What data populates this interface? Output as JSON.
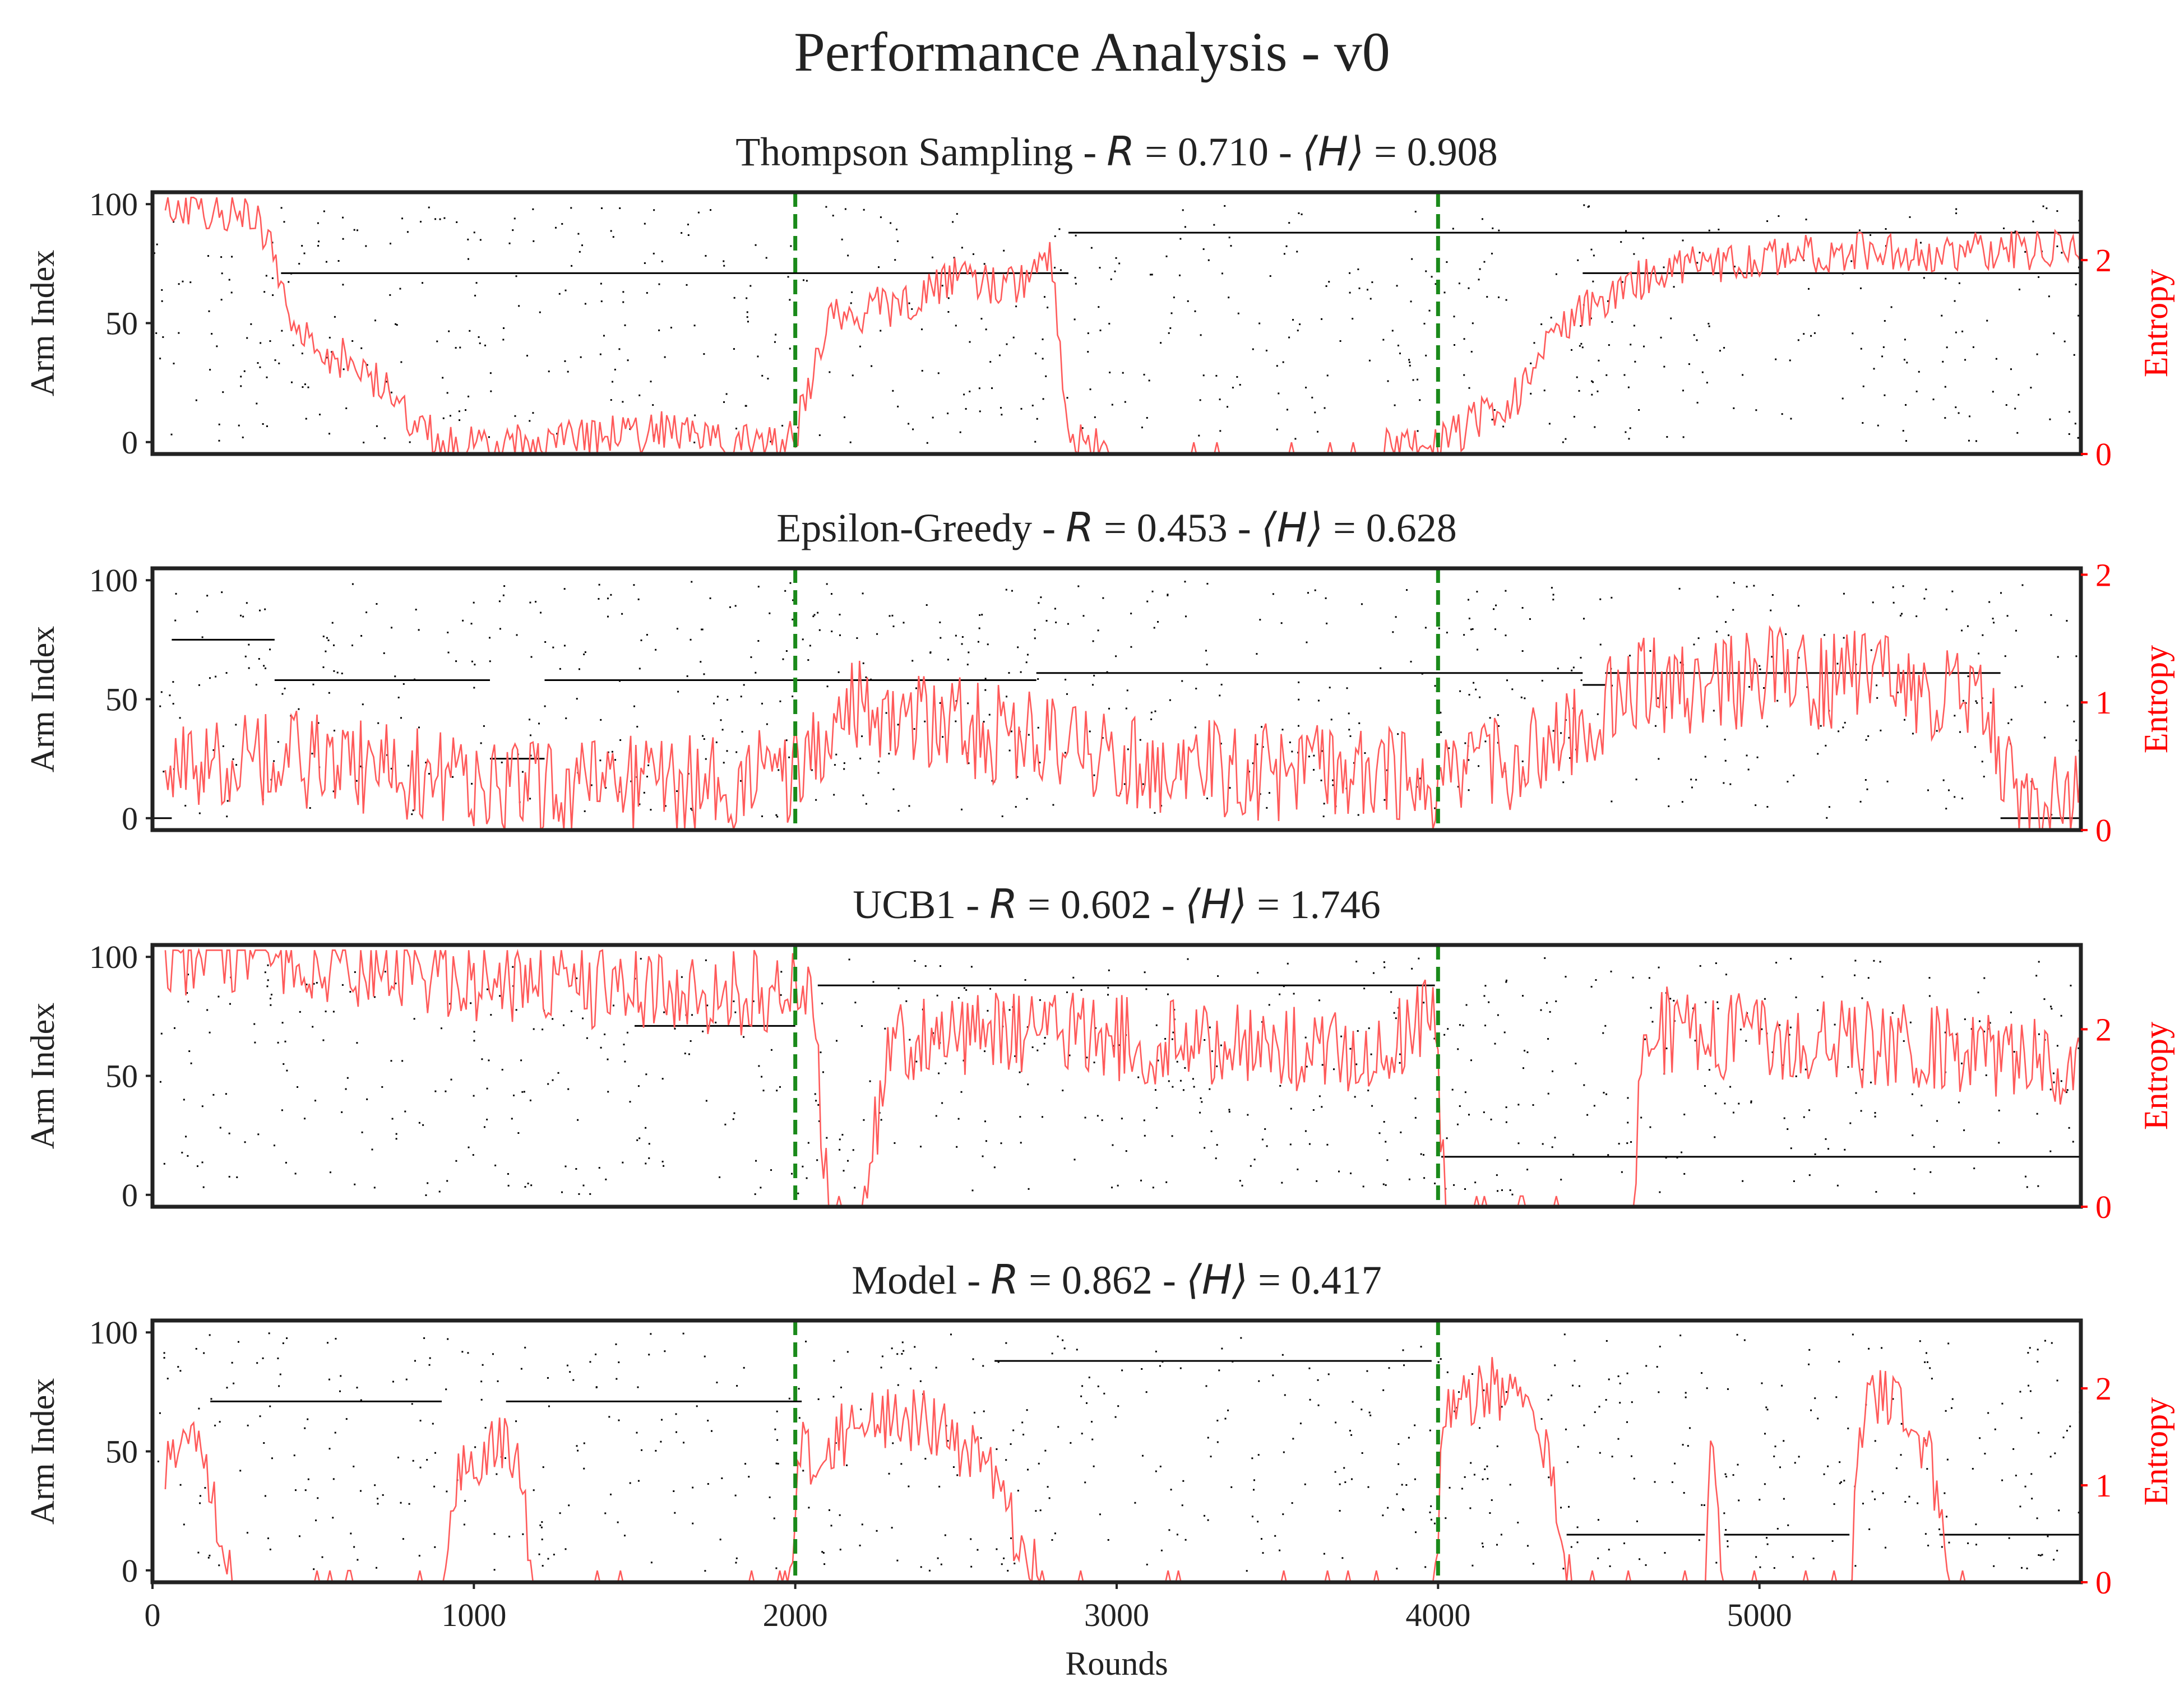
{
  "figure_title": "Performance Analysis - v0",
  "colors": {
    "entropy_line": "#ff5a5a",
    "entropy_axis": "#ff0000",
    "switch_line": "#1a8a1a",
    "choices": "#000000",
    "frame": "#222222"
  },
  "chart_data": [
    {
      "type": "line",
      "name": "Thompson Sampling",
      "title_prefix": "Thompson Sampling - ",
      "R_label": "R",
      "R_value": "0.710",
      "H_label": "⟨H⟩",
      "H_value": "0.908",
      "xlabel": "",
      "ylabel": "Arm Index",
      "y2label": "Entropy",
      "xlim": [
        0,
        6000
      ],
      "ylim": [
        -5,
        105
      ],
      "y2lim": [
        0,
        2.7
      ],
      "yticks": [
        "0",
        "50",
        "100"
      ],
      "y2ticks": [
        "0",
        "2"
      ],
      "switch_rounds": [
        2000,
        4000
      ],
      "dominant_arm_segments": [
        [
          400,
          2850,
          71
        ],
        [
          2850,
          6000,
          88
        ],
        [
          4450,
          6000,
          71
        ]
      ],
      "entropy_anchor_points": [
        [
          40,
          2.6
        ],
        [
          150,
          2.55
        ],
        [
          250,
          2.5
        ],
        [
          350,
          2.3
        ],
        [
          450,
          1.2
        ],
        [
          550,
          1.05
        ],
        [
          650,
          0.9
        ],
        [
          750,
          0.55
        ],
        [
          850,
          0.25
        ],
        [
          950,
          0.05
        ],
        [
          1100,
          0.1
        ],
        [
          1300,
          0.15
        ],
        [
          1500,
          0.2
        ],
        [
          1700,
          0.25
        ],
        [
          1850,
          0.1
        ],
        [
          1950,
          0.1
        ],
        [
          2000,
          0.2
        ],
        [
          2100,
          1.4
        ],
        [
          2250,
          1.5
        ],
        [
          2400,
          1.6
        ],
        [
          2500,
          1.9
        ],
        [
          2650,
          1.7
        ],
        [
          2800,
          2.0
        ],
        [
          2850,
          0.1
        ],
        [
          3000,
          0.05
        ],
        [
          3500,
          0.05
        ],
        [
          3800,
          0.05
        ],
        [
          4000,
          0.1
        ],
        [
          4100,
          0.3
        ],
        [
          4250,
          0.6
        ],
        [
          4350,
          1.2
        ],
        [
          4500,
          1.6
        ],
        [
          4700,
          1.9
        ],
        [
          5000,
          2.0
        ],
        [
          5300,
          2.1
        ],
        [
          5600,
          2.05
        ],
        [
          6000,
          2.15
        ]
      ],
      "entropy_noise": 0.22
    },
    {
      "type": "line",
      "name": "Epsilon-Greedy",
      "title_prefix": "Epsilon-Greedy - ",
      "R_label": "R",
      "R_value": "0.453",
      "H_label": "⟨H⟩",
      "H_value": "0.628",
      "xlabel": "",
      "ylabel": "Arm Index",
      "y2label": "Entropy",
      "xlim": [
        0,
        6000
      ],
      "ylim": [
        -5,
        105
      ],
      "y2lim": [
        0,
        2.05
      ],
      "yticks": [
        "0",
        "50",
        "100"
      ],
      "y2ticks": [
        "0",
        "1",
        "2"
      ],
      "switch_rounds": [
        2000,
        4000
      ],
      "dominant_arm_segments": [
        [
          0,
          60,
          0
        ],
        [
          60,
          380,
          75
        ],
        [
          380,
          1050,
          58
        ],
        [
          1050,
          1220,
          25
        ],
        [
          1220,
          2750,
          58
        ],
        [
          2750,
          4450,
          61
        ],
        [
          4450,
          4520,
          56
        ],
        [
          4520,
          5750,
          61
        ],
        [
          5750,
          6000,
          0
        ]
      ],
      "entropy_anchor_points": [
        [
          60,
          0.4
        ],
        [
          300,
          0.6
        ],
        [
          600,
          0.5
        ],
        [
          900,
          0.4
        ],
        [
          1200,
          0.3
        ],
        [
          1500,
          0.35
        ],
        [
          1800,
          0.4
        ],
        [
          2000,
          0.45
        ],
        [
          2200,
          1.0
        ],
        [
          2500,
          0.8
        ],
        [
          2800,
          0.7
        ],
        [
          3200,
          0.5
        ],
        [
          3600,
          0.45
        ],
        [
          4000,
          0.4
        ],
        [
          4300,
          0.6
        ],
        [
          4600,
          1.1
        ],
        [
          5000,
          1.2
        ],
        [
          5400,
          1.15
        ],
        [
          5700,
          1.0
        ],
        [
          5800,
          0.2
        ],
        [
          6000,
          0.2
        ]
      ],
      "entropy_noise": 0.4
    },
    {
      "type": "line",
      "name": "UCB1",
      "title_prefix": "UCB1 - ",
      "R_label": "R",
      "R_value": "0.602",
      "H_label": "⟨H⟩",
      "H_value": "1.746",
      "xlabel": "",
      "ylabel": "Arm Index",
      "y2label": "Entropy",
      "xlim": [
        0,
        6000
      ],
      "ylim": [
        -5,
        105
      ],
      "y2lim": [
        0,
        2.95
      ],
      "yticks": [
        "0",
        "50",
        "100"
      ],
      "y2ticks": [
        "0",
        "2"
      ],
      "switch_rounds": [
        2000,
        4000
      ],
      "dominant_arm_segments": [
        [
          1500,
          2000,
          71
        ],
        [
          2070,
          3990,
          88
        ],
        [
          4010,
          6000,
          16
        ]
      ],
      "entropy_anchor_points": [
        [
          40,
          2.85
        ],
        [
          300,
          2.85
        ],
        [
          500,
          2.8
        ],
        [
          800,
          2.65
        ],
        [
          1100,
          2.55
        ],
        [
          1400,
          2.5
        ],
        [
          1700,
          2.45
        ],
        [
          1950,
          2.4
        ],
        [
          2050,
          2.4
        ],
        [
          2100,
          0.05
        ],
        [
          2200,
          0.05
        ],
        [
          2300,
          1.9
        ],
        [
          2600,
          2.0
        ],
        [
          3000,
          1.9
        ],
        [
          3400,
          1.8
        ],
        [
          3800,
          1.7
        ],
        [
          3990,
          2.2
        ],
        [
          4020,
          0.05
        ],
        [
          4300,
          0.05
        ],
        [
          4600,
          0.05
        ],
        [
          4650,
          2.0
        ],
        [
          5000,
          1.9
        ],
        [
          5400,
          1.8
        ],
        [
          5800,
          1.7
        ],
        [
          6000,
          1.6
        ]
      ],
      "entropy_noise": 0.5
    },
    {
      "type": "line",
      "name": "Model",
      "title_prefix": "Model - ",
      "R_label": "R",
      "R_value": "0.862",
      "H_label": "⟨H⟩",
      "H_value": "0.417",
      "xlabel": "Rounds",
      "ylabel": "Arm Index",
      "y2label": "Entropy",
      "xlim": [
        0,
        6000
      ],
      "ylim": [
        -5,
        105
      ],
      "y2lim": [
        0,
        2.7
      ],
      "yticks": [
        "0",
        "50",
        "100"
      ],
      "y2ticks": [
        "0",
        "1",
        "2"
      ],
      "xticks": [
        "0",
        "1000",
        "2000",
        "3000",
        "4000",
        "5000"
      ],
      "switch_rounds": [
        2000,
        4000
      ],
      "dominant_arm_segments": [
        [
          180,
          900,
          71
        ],
        [
          1100,
          2020,
          71
        ],
        [
          2620,
          3980,
          88
        ],
        [
          4400,
          4830,
          15
        ],
        [
          4890,
          5280,
          15
        ],
        [
          5560,
          6000,
          15
        ]
      ],
      "entropy_anchor_points": [
        [
          40,
          1.2
        ],
        [
          150,
          1.5
        ],
        [
          250,
          0.02
        ],
        [
          900,
          0.02
        ],
        [
          950,
          1.0
        ],
        [
          1050,
          1.5
        ],
        [
          1150,
          1.2
        ],
        [
          1180,
          0.02
        ],
        [
          1980,
          0.02
        ],
        [
          2020,
          1.3
        ],
        [
          2200,
          1.6
        ],
        [
          2400,
          1.7
        ],
        [
          2600,
          1.2
        ],
        [
          2700,
          0.4
        ],
        [
          2760,
          0.02
        ],
        [
          3990,
          0.02
        ],
        [
          4020,
          1.9
        ],
        [
          4200,
          2.0
        ],
        [
          4350,
          1.3
        ],
        [
          4400,
          0.1
        ],
        [
          4430,
          0.02
        ],
        [
          4830,
          0.02
        ],
        [
          4850,
          2.0
        ],
        [
          4880,
          0.02
        ],
        [
          5280,
          0.02
        ],
        [
          5330,
          2.1
        ],
        [
          5500,
          1.5
        ],
        [
          5550,
          1.0
        ],
        [
          5580,
          0.02
        ],
        [
          6000,
          0.02
        ]
      ],
      "entropy_noise": 0.35
    }
  ]
}
